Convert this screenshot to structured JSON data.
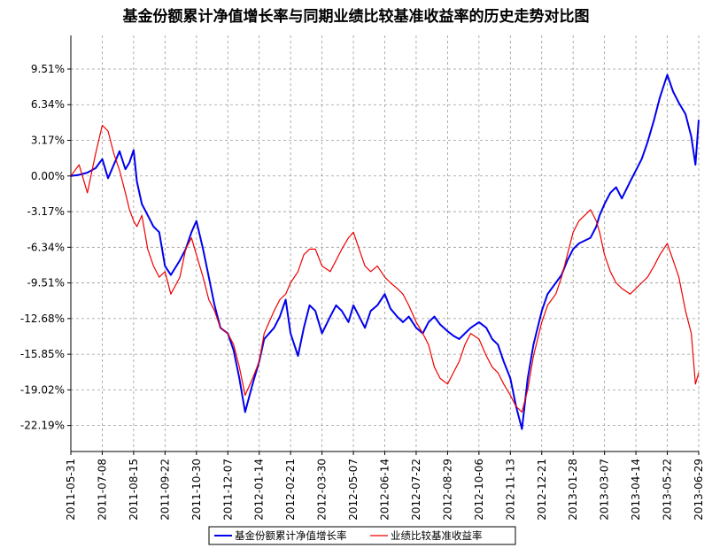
{
  "chart_data": {
    "type": "line",
    "title": "基金份额累计净值增长率与同期业绩比较基准收益率的历史走势对比图",
    "xlabel": "",
    "ylabel": "",
    "y_tick_labels": [
      "9.51%",
      "6.34%",
      "3.17%",
      "0.00%",
      "-3.17%",
      "-6.34%",
      "-9.51%",
      "-12.68%",
      "-15.85%",
      "-19.02%",
      "-22.19%"
    ],
    "y_ticks": [
      9.51,
      6.34,
      3.17,
      0.0,
      -3.17,
      -6.34,
      -9.51,
      -12.68,
      -15.85,
      -19.02,
      -22.19
    ],
    "x_tick_labels": [
      "2011-05-31",
      "2011-07-08",
      "2011-08-15",
      "2011-09-22",
      "2011-10-30",
      "2011-12-07",
      "2012-01-14",
      "2012-02-21",
      "2012-03-30",
      "2012-05-07",
      "2012-06-14",
      "2012-07-22",
      "2012-08-29",
      "2012-10-06",
      "2012-11-13",
      "2012-12-21",
      "2013-01-28",
      "2013-03-07",
      "2013-04-14",
      "2013-05-22",
      "2013-06-29"
    ],
    "ylim": [
      -24.5,
      12.5
    ],
    "grid": true,
    "legend_position": "bottom",
    "series": [
      {
        "name": "基金份额累计净值增长率",
        "color": "#0000ee",
        "x": [
          "2011-05-31",
          "2011-06-10",
          "2011-06-20",
          "2011-06-30",
          "2011-07-08",
          "2011-07-15",
          "2011-07-22",
          "2011-07-29",
          "2011-08-05",
          "2011-08-10",
          "2011-08-15",
          "2011-08-19",
          "2011-08-25",
          "2011-09-01",
          "2011-09-08",
          "2011-09-15",
          "2011-09-22",
          "2011-09-29",
          "2011-10-10",
          "2011-10-17",
          "2011-10-24",
          "2011-10-30",
          "2011-11-07",
          "2011-11-14",
          "2011-11-21",
          "2011-11-28",
          "2011-12-07",
          "2011-12-14",
          "2011-12-21",
          "2011-12-28",
          "2012-01-06",
          "2012-01-14",
          "2012-01-20",
          "2012-02-01",
          "2012-02-08",
          "2012-02-15",
          "2012-02-21",
          "2012-03-01",
          "2012-03-08",
          "2012-03-15",
          "2012-03-22",
          "2012-03-30",
          "2012-04-09",
          "2012-04-16",
          "2012-04-23",
          "2012-05-01",
          "2012-05-07",
          "2012-05-14",
          "2012-05-21",
          "2012-05-28",
          "2012-06-05",
          "2012-06-14",
          "2012-06-21",
          "2012-06-29",
          "2012-07-06",
          "2012-07-13",
          "2012-07-22",
          "2012-07-30",
          "2012-08-06",
          "2012-08-13",
          "2012-08-20",
          "2012-08-29",
          "2012-09-05",
          "2012-09-12",
          "2012-09-19",
          "2012-09-26",
          "2012-10-06",
          "2012-10-15",
          "2012-10-22",
          "2012-10-29",
          "2012-11-05",
          "2012-11-13",
          "2012-11-20",
          "2012-11-27",
          "2012-12-04",
          "2012-12-11",
          "2012-12-21",
          "2012-12-28",
          "2013-01-07",
          "2013-01-14",
          "2013-01-21",
          "2013-01-28",
          "2013-02-04",
          "2013-02-18",
          "2013-02-25",
          "2013-03-01",
          "2013-03-07",
          "2013-03-14",
          "2013-03-21",
          "2013-03-28",
          "2013-04-07",
          "2013-04-14",
          "2013-04-21",
          "2013-04-28",
          "2013-05-06",
          "2013-05-13",
          "2013-05-22",
          "2013-05-29",
          "2013-06-05",
          "2013-06-13",
          "2013-06-20",
          "2013-06-25",
          "2013-06-29"
        ],
        "values": [
          0.0,
          0.1,
          0.3,
          0.7,
          1.5,
          -0.2,
          1.0,
          2.2,
          0.6,
          1.2,
          2.3,
          -0.5,
          -2.5,
          -3.5,
          -4.5,
          -5.0,
          -8.0,
          -8.8,
          -7.5,
          -6.5,
          -5.0,
          -4.0,
          -6.5,
          -9.0,
          -11.5,
          -13.5,
          -14.0,
          -15.5,
          -18.0,
          -21.0,
          -18.5,
          -16.5,
          -14.5,
          -13.5,
          -12.5,
          -11.0,
          -14.0,
          -16.0,
          -13.5,
          -11.5,
          -12.0,
          -14.0,
          -12.5,
          -11.5,
          -12.0,
          -13.0,
          -11.5,
          -12.5,
          -13.5,
          -12.0,
          -11.5,
          -10.5,
          -11.8,
          -12.5,
          -13.0,
          -12.5,
          -13.5,
          -14.0,
          -13.0,
          -12.5,
          -13.2,
          -13.8,
          -14.2,
          -14.5,
          -14.0,
          -13.5,
          -13.0,
          -13.5,
          -14.5,
          -15.0,
          -16.5,
          -18.0,
          -20.5,
          -22.5,
          -18.0,
          -15.0,
          -12.0,
          -10.5,
          -9.5,
          -8.8,
          -7.5,
          -6.5,
          -6.0,
          -5.5,
          -4.5,
          -3.5,
          -2.5,
          -1.5,
          -1.0,
          -2.0,
          -0.5,
          0.5,
          1.5,
          3.0,
          5.0,
          7.0,
          9.0,
          7.5,
          6.5,
          5.5,
          3.5,
          1.0,
          5.0
        ]
      },
      {
        "name": "业绩比较基准收益率",
        "color": "#ee0000",
        "x": [
          "2011-05-31",
          "2011-06-10",
          "2011-06-20",
          "2011-06-30",
          "2011-07-08",
          "2011-07-15",
          "2011-07-22",
          "2011-07-29",
          "2011-08-05",
          "2011-08-10",
          "2011-08-15",
          "2011-08-19",
          "2011-08-25",
          "2011-09-01",
          "2011-09-08",
          "2011-09-15",
          "2011-09-22",
          "2011-09-29",
          "2011-10-10",
          "2011-10-17",
          "2011-10-24",
          "2011-10-30",
          "2011-11-07",
          "2011-11-14",
          "2011-11-21",
          "2011-11-28",
          "2011-12-07",
          "2011-12-14",
          "2011-12-21",
          "2011-12-28",
          "2012-01-06",
          "2012-01-14",
          "2012-01-20",
          "2012-02-01",
          "2012-02-08",
          "2012-02-15",
          "2012-02-21",
          "2012-03-01",
          "2012-03-08",
          "2012-03-15",
          "2012-03-22",
          "2012-03-30",
          "2012-04-09",
          "2012-04-16",
          "2012-04-23",
          "2012-05-01",
          "2012-05-07",
          "2012-05-14",
          "2012-05-21",
          "2012-05-28",
          "2012-06-05",
          "2012-06-14",
          "2012-06-21",
          "2012-06-29",
          "2012-07-06",
          "2012-07-13",
          "2012-07-22",
          "2012-07-30",
          "2012-08-06",
          "2012-08-13",
          "2012-08-20",
          "2012-08-29",
          "2012-09-05",
          "2012-09-12",
          "2012-09-19",
          "2012-09-26",
          "2012-10-06",
          "2012-10-15",
          "2012-10-22",
          "2012-10-29",
          "2012-11-05",
          "2012-11-13",
          "2012-11-20",
          "2012-11-27",
          "2012-12-04",
          "2012-12-11",
          "2012-12-21",
          "2012-12-28",
          "2013-01-07",
          "2013-01-14",
          "2013-01-21",
          "2013-01-28",
          "2013-02-04",
          "2013-02-18",
          "2013-02-25",
          "2013-03-01",
          "2013-03-07",
          "2013-03-14",
          "2013-03-21",
          "2013-03-28",
          "2013-04-07",
          "2013-04-14",
          "2013-04-21",
          "2013-04-28",
          "2013-05-06",
          "2013-05-13",
          "2013-05-22",
          "2013-05-29",
          "2013-06-05",
          "2013-06-13",
          "2013-06-20",
          "2013-06-25",
          "2013-06-29"
        ],
        "values": [
          0.0,
          1.0,
          -1.5,
          2.0,
          4.5,
          4.0,
          2.0,
          0.5,
          -1.5,
          -3.0,
          -4.0,
          -4.5,
          -3.5,
          -6.5,
          -8.0,
          -9.0,
          -8.5,
          -10.5,
          -9.0,
          -6.5,
          -5.5,
          -7.0,
          -9.0,
          -11.0,
          -12.0,
          -13.5,
          -14.0,
          -15.0,
          -17.0,
          -19.5,
          -18.0,
          -16.5,
          -14.0,
          -12.0,
          -11.0,
          -10.5,
          -9.5,
          -8.5,
          -7.0,
          -6.5,
          -6.5,
          -8.0,
          -8.5,
          -7.5,
          -6.5,
          -5.5,
          -5.0,
          -6.5,
          -8.0,
          -8.5,
          -8.0,
          -9.0,
          -9.5,
          -10.0,
          -10.5,
          -11.5,
          -13.0,
          -14.0,
          -15.0,
          -17.0,
          -18.0,
          -18.5,
          -17.5,
          -16.5,
          -15.0,
          -14.0,
          -14.5,
          -16.0,
          -17.0,
          -17.5,
          -18.5,
          -19.5,
          -20.5,
          -21.0,
          -19.0,
          -16.0,
          -13.0,
          -11.5,
          -10.5,
          -9.0,
          -7.0,
          -5.0,
          -4.0,
          -3.0,
          -4.0,
          -5.0,
          -7.0,
          -8.5,
          -9.5,
          -10.0,
          -10.5,
          -10.0,
          -9.5,
          -9.0,
          -8.0,
          -7.0,
          -6.0,
          -7.5,
          -9.0,
          -12.0,
          -14.0,
          -18.5,
          -17.5
        ]
      }
    ]
  }
}
